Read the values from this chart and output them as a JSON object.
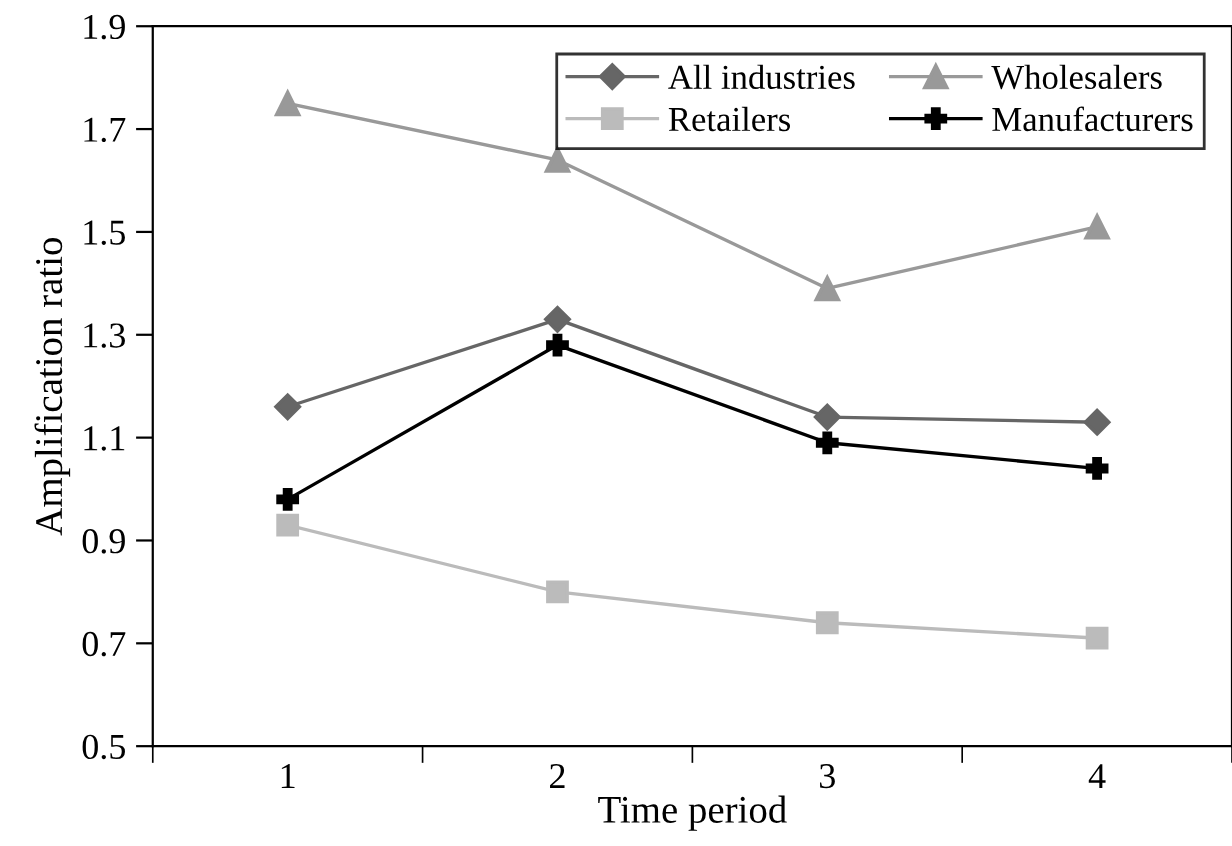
{
  "chart_data": {
    "type": "line",
    "xlabel": "Time period",
    "ylabel": "Amplification ratio",
    "categories": [
      "1",
      "2",
      "3",
      "4"
    ],
    "series": [
      {
        "name": "All industries",
        "color": "#666666",
        "marker": "diamond",
        "values": [
          1.16,
          1.33,
          1.14,
          1.13
        ]
      },
      {
        "name": "Wholesalers",
        "color": "#999999",
        "marker": "triangle",
        "values": [
          1.75,
          1.64,
          1.39,
          1.51
        ]
      },
      {
        "name": "Retailers",
        "color": "#bbbbbb",
        "marker": "square",
        "values": [
          0.93,
          0.8,
          0.74,
          0.71
        ]
      },
      {
        "name": "Manufacturers",
        "color": "#000000",
        "marker": "cross",
        "values": [
          0.98,
          1.28,
          1.09,
          1.04
        ]
      }
    ],
    "ylim": [
      0.5,
      1.9
    ],
    "yticks": [
      0.5,
      0.7,
      0.9,
      1.1,
      1.3,
      1.5,
      1.7,
      1.9
    ],
    "grid": false,
    "legend": "top right",
    "line_style": "solid"
  }
}
